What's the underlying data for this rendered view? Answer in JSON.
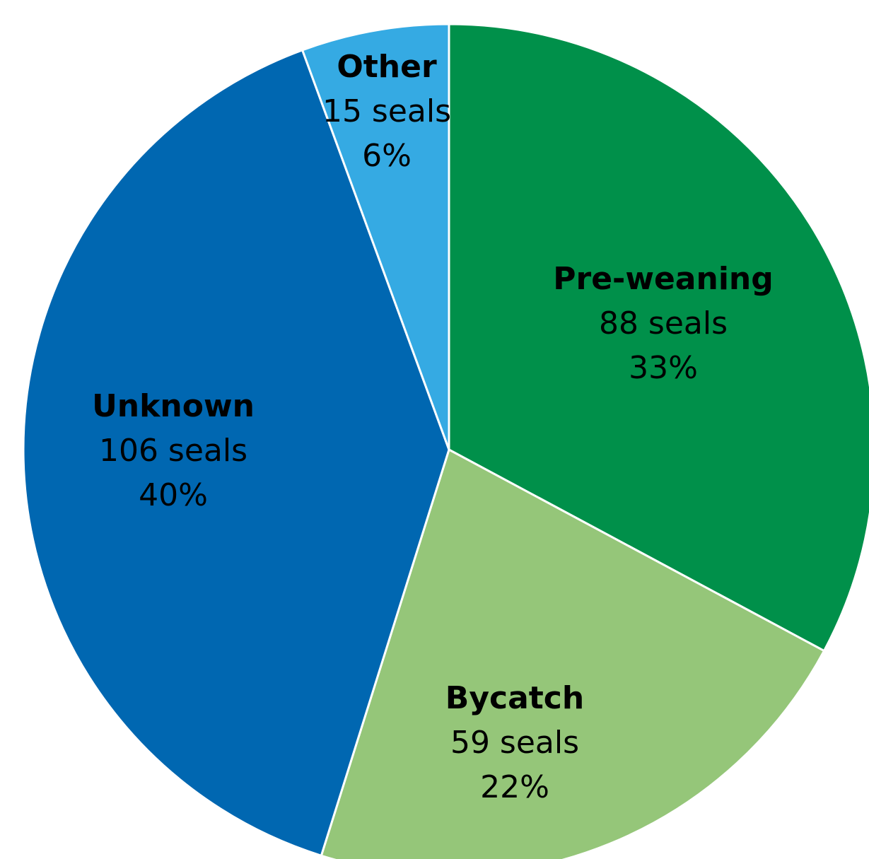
{
  "chart_data": {
    "type": "pie",
    "categories": [
      "Pre-weaning",
      "Bycatch",
      "Unknown",
      "Other"
    ],
    "values": [
      88,
      59,
      106,
      15
    ],
    "value_labels": [
      "88 seals",
      "59 seals",
      "106 seals",
      "15 seals"
    ],
    "percent_labels": [
      "33%",
      "22%",
      "40%",
      "6%"
    ],
    "colors": [
      "#00904a",
      "#95c679",
      "#0067b1",
      "#35aae3"
    ]
  }
}
